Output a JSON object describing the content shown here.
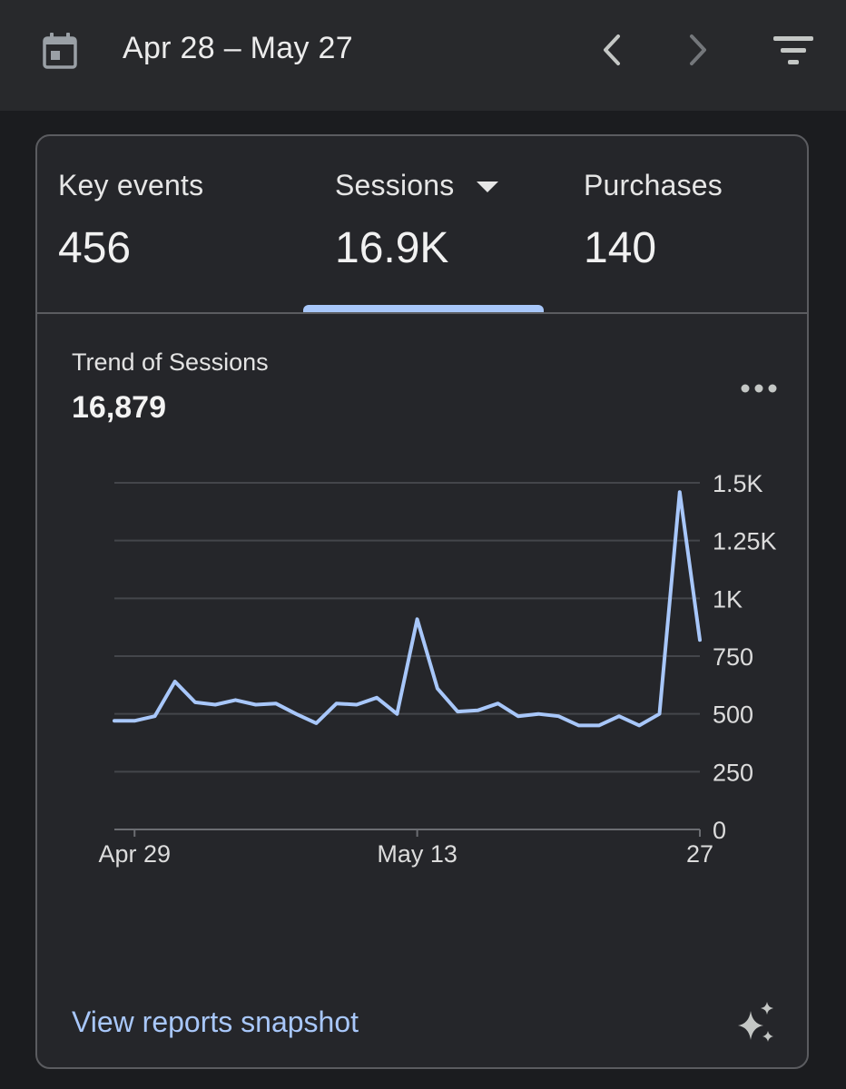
{
  "header": {
    "date_range": "Apr 28 – May 27",
    "calendar_icon": "calendar-icon",
    "prev_icon": "chevron-left-icon",
    "next_icon": "chevron-right-icon",
    "filter_icon": "filter-icon"
  },
  "metrics": {
    "tabs": [
      {
        "label": "Key events",
        "value": "456",
        "selected": false
      },
      {
        "label": "Sessions",
        "value": "16.9K",
        "selected": true
      },
      {
        "label": "Purchases",
        "value": "140",
        "selected": false
      }
    ]
  },
  "trend": {
    "title": "Trend of Sessions",
    "total": "16,879",
    "more_icon": "more-horizontal-icon"
  },
  "chart_data": {
    "type": "line",
    "title": "Trend of Sessions",
    "x": [
      "Apr 28",
      "Apr 29",
      "Apr 30",
      "May 1",
      "May 2",
      "May 3",
      "May 4",
      "May 5",
      "May 6",
      "May 7",
      "May 8",
      "May 9",
      "May 10",
      "May 11",
      "May 12",
      "May 13",
      "May 14",
      "May 15",
      "May 16",
      "May 17",
      "May 18",
      "May 19",
      "May 20",
      "May 21",
      "May 22",
      "May 23",
      "May 24",
      "May 25",
      "May 26",
      "May 27"
    ],
    "series": [
      {
        "values": [
          470,
          470,
          490,
          640,
          550,
          540,
          560,
          540,
          545,
          500,
          460,
          545,
          540,
          570,
          500,
          910,
          610,
          510,
          515,
          545,
          490,
          500,
          490,
          450,
          450,
          490,
          450,
          500,
          1460,
          820
        ]
      }
    ],
    "x_tick_labels": [
      {
        "label": "Apr 29",
        "x": "Apr 29"
      },
      {
        "label": "May 13",
        "x": "May 13"
      },
      {
        "label": "27",
        "x": "May 27"
      }
    ],
    "y_ticks": [
      0,
      250,
      500,
      750,
      1000,
      1250,
      1500
    ],
    "y_tick_labels": [
      "0",
      "250",
      "500",
      "750",
      "1K",
      "1.25K",
      "1.5K"
    ],
    "ylim": [
      0,
      1500
    ],
    "grid": true,
    "y_axis_position": "right",
    "line_color": "#a8c7fa"
  },
  "footer": {
    "link_label": "View reports snapshot",
    "sparkle_icon": "sparkle-icon"
  },
  "colors": {
    "accent": "#a8c7fa",
    "background": "#1b1c1f",
    "card": "#25262a",
    "header": "#28292c"
  }
}
